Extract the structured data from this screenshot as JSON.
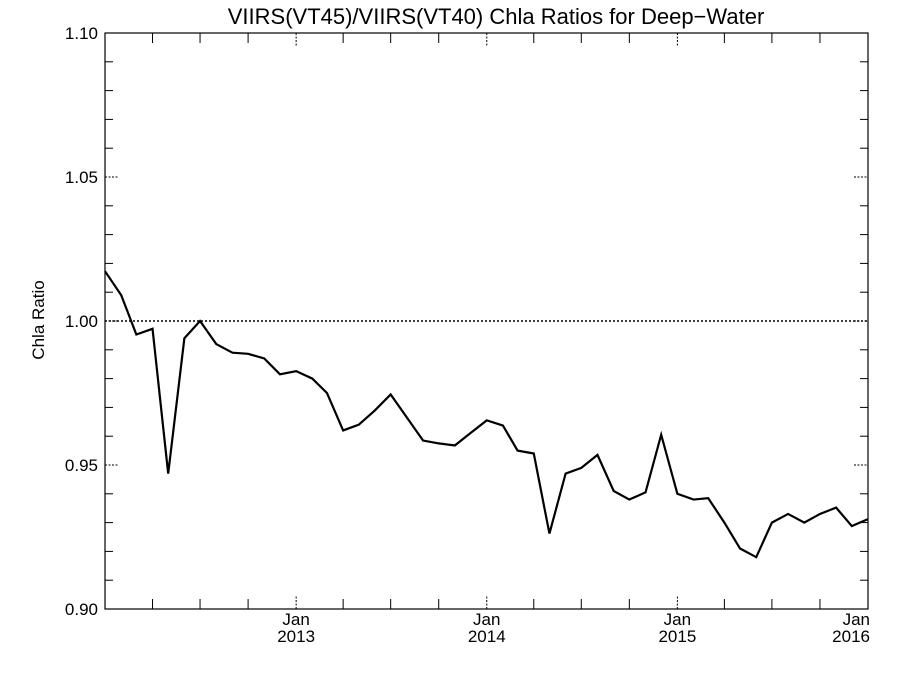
{
  "chart_data": {
    "type": "line",
    "title": "VIIRS(VT45)/VIIRS(VT40)  Chla Ratios for Deep−Water",
    "xlabel": "",
    "ylabel": "Chla Ratio",
    "ylim": [
      0.9,
      1.1
    ],
    "xlim": [
      "2012-01-01",
      "2016-01-01"
    ],
    "yticks": [
      {
        "value": 0.9,
        "label": "0.90"
      },
      {
        "value": 0.95,
        "label": "0.95"
      },
      {
        "value": 1.0,
        "label": "1.00"
      },
      {
        "value": 1.05,
        "label": "1.05"
      },
      {
        "value": 1.1,
        "label": "1.10"
      }
    ],
    "xticks": [
      {
        "date": "2013-01-01",
        "month": "Jan",
        "year": "2013"
      },
      {
        "date": "2014-01-01",
        "month": "Jan",
        "year": "2014"
      },
      {
        "date": "2015-01-01",
        "month": "Jan",
        "year": "2015"
      },
      {
        "date": "2016-01-01",
        "month": "Jan",
        "year": "2016"
      }
    ],
    "reference_line": 1.0,
    "grid": false,
    "color": "#000000",
    "series": [
      {
        "x": [
          "2012-01-01",
          "2012-02-01",
          "2012-03-01",
          "2012-04-01",
          "2012-05-01",
          "2012-06-01",
          "2012-07-01",
          "2012-08-01",
          "2012-09-01",
          "2012-10-01",
          "2012-11-01",
          "2012-12-01",
          "2013-01-01",
          "2013-02-01",
          "2013-03-01",
          "2013-04-01",
          "2013-05-01",
          "2013-06-01",
          "2013-07-01",
          "2013-08-01",
          "2013-09-01",
          "2013-10-01",
          "2013-11-01",
          "2013-12-01",
          "2014-01-01",
          "2014-02-01",
          "2014-03-01",
          "2014-04-01",
          "2014-05-01",
          "2014-06-01",
          "2014-07-01",
          "2014-08-01",
          "2014-09-01",
          "2014-10-01",
          "2014-11-01",
          "2014-12-01",
          "2015-01-01",
          "2015-02-01",
          "2015-03-01",
          "2015-04-01",
          "2015-05-01",
          "2015-06-01",
          "2015-07-01",
          "2015-08-01",
          "2015-09-01",
          "2015-10-01",
          "2015-11-01",
          "2015-12-01",
          "2016-01-01"
        ],
        "y": [
          1.0173,
          1.009,
          0.9953,
          0.9973,
          0.947,
          0.994,
          1.0,
          0.992,
          0.989,
          0.9886,
          0.987,
          0.9815,
          0.9826,
          0.98,
          0.975,
          0.962,
          0.964,
          0.969,
          0.9745,
          0.9665,
          0.9585,
          0.9575,
          0.9568,
          0.9611,
          0.9655,
          0.9637,
          0.955,
          0.954,
          0.9262,
          0.947,
          0.949,
          0.9535,
          0.941,
          0.938,
          0.9405,
          0.9605,
          0.94,
          0.938,
          0.9385,
          0.93,
          0.921,
          0.918,
          0.93,
          0.933,
          0.93,
          0.933,
          0.9352,
          0.9288,
          0.9312
        ]
      }
    ]
  }
}
